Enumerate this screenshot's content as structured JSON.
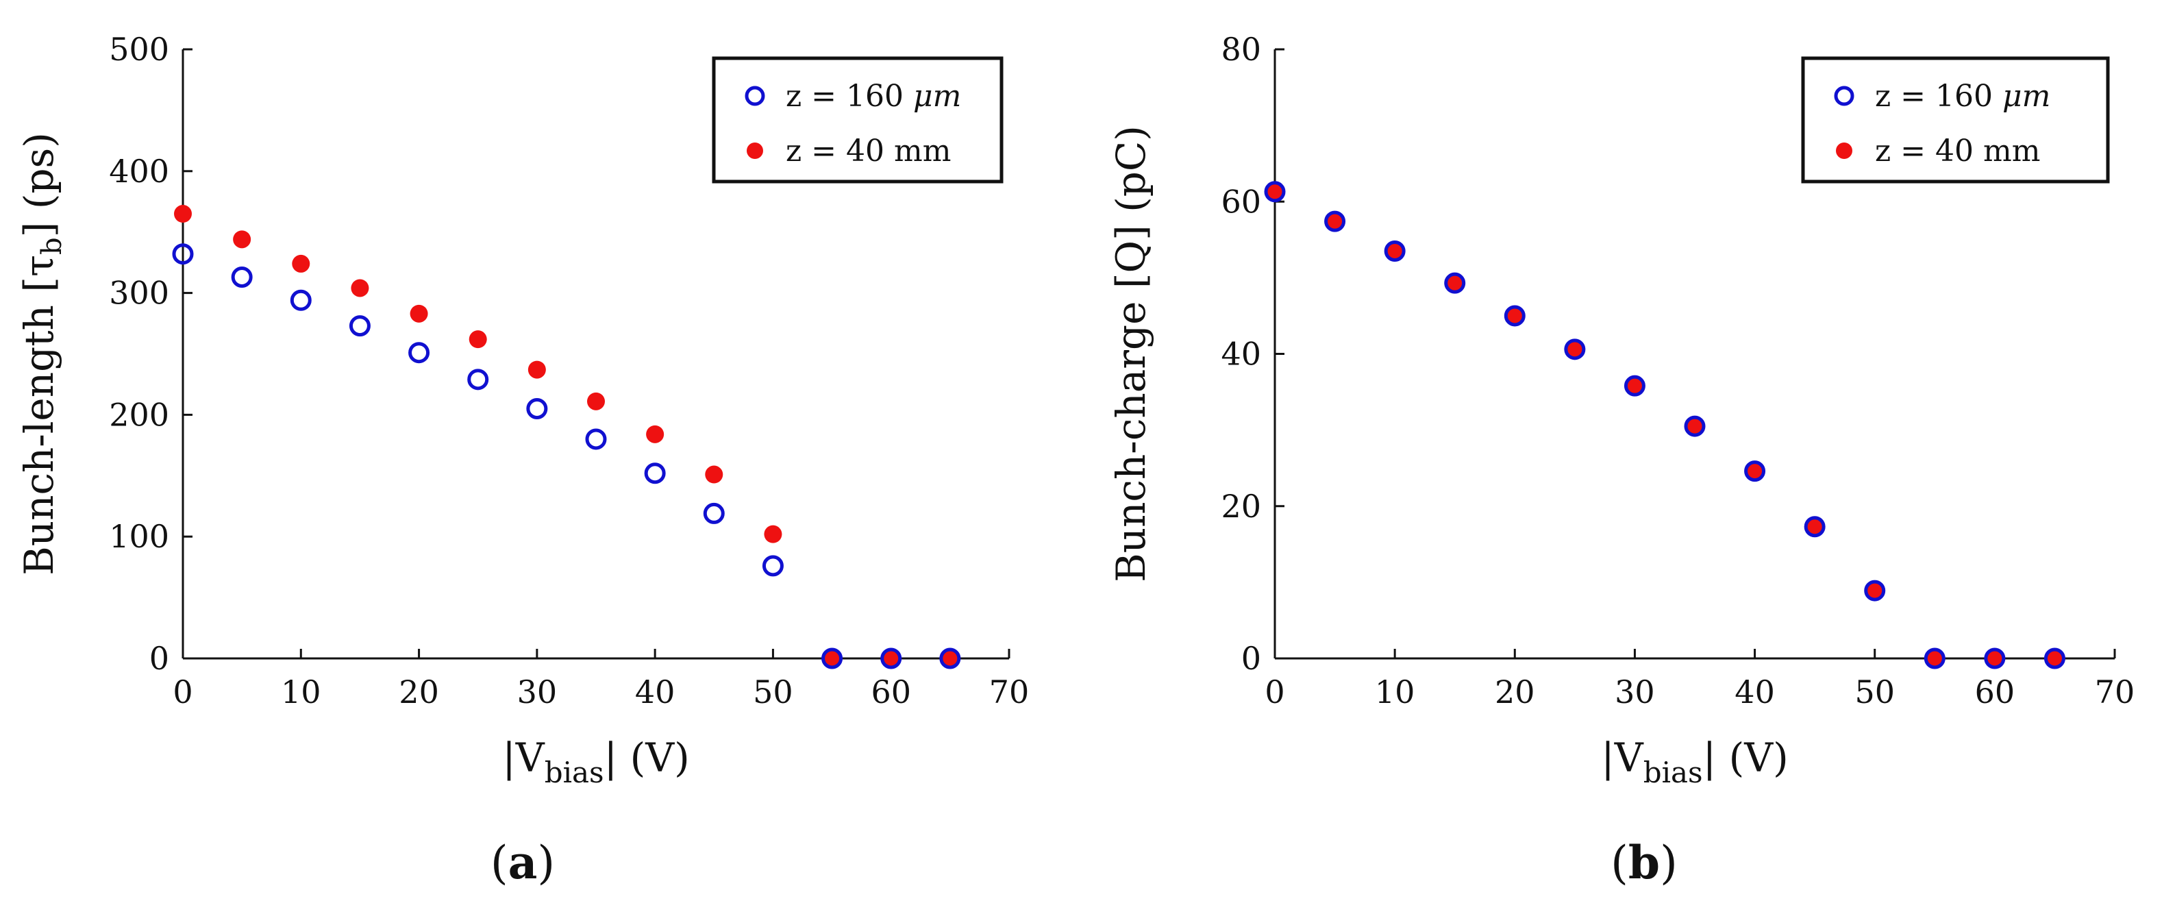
{
  "chart_data": [
    {
      "type": "scatter",
      "panel_label_open": "(",
      "panel_label": "a",
      "panel_label_close": ")",
      "ylabel": {
        "prefix": "Bunch-length [",
        "symbol": "τ",
        "subscript": "b",
        "suffix": "] (ps)"
      },
      "xlabel": {
        "prefix": "|V",
        "subscript": "bias",
        "suffix": "| (V)"
      },
      "xlim": [
        0,
        70
      ],
      "ylim": [
        0,
        500
      ],
      "xticks": [
        0,
        10,
        20,
        30,
        40,
        50,
        60,
        70
      ],
      "yticks": [
        0,
        100,
        200,
        300,
        400,
        500
      ],
      "x_tick_labels": [
        "0",
        "10",
        "20",
        "30",
        "40",
        "50",
        "60",
        "70"
      ],
      "y_tick_labels": [
        "0",
        "100",
        "200",
        "300",
        "400",
        "500"
      ],
      "legend_position": "top-right",
      "series": [
        {
          "name": "z = 160 μm",
          "label_prefix": "z = 160 ",
          "label_unit": "μm",
          "marker": "open-circle",
          "color": "#1010d0",
          "x": [
            0,
            5,
            10,
            15,
            20,
            25,
            30,
            35,
            40,
            45,
            50,
            55,
            60,
            65
          ],
          "y": [
            332,
            313,
            294,
            273,
            251,
            229,
            205,
            180,
            152,
            119,
            76,
            0,
            0,
            0
          ]
        },
        {
          "name": "z = 40 mm",
          "label_prefix": "z = 40 mm",
          "label_unit": "",
          "marker": "filled-circle",
          "color": "#ee1111",
          "x": [
            0,
            5,
            10,
            15,
            20,
            25,
            30,
            35,
            40,
            45,
            50,
            55,
            60,
            65
          ],
          "y": [
            365,
            344,
            324,
            304,
            283,
            262,
            237,
            211,
            184,
            151,
            102,
            0,
            0,
            0
          ]
        }
      ]
    },
    {
      "type": "scatter",
      "panel_label_open": "(",
      "panel_label": "b",
      "panel_label_close": ")",
      "ylabel": {
        "prefix": "Bunch-charge [Q] (pC)",
        "symbol": "",
        "subscript": "",
        "suffix": ""
      },
      "xlabel": {
        "prefix": "|V",
        "subscript": "bias",
        "suffix": "| (V)"
      },
      "xlim": [
        0,
        70
      ],
      "ylim": [
        0,
        80
      ],
      "xticks": [
        0,
        10,
        20,
        30,
        40,
        50,
        60,
        70
      ],
      "yticks": [
        0,
        20,
        40,
        60,
        80
      ],
      "x_tick_labels": [
        "0",
        "10",
        "20",
        "30",
        "40",
        "50",
        "60",
        "70"
      ],
      "y_tick_labels": [
        "0",
        "20",
        "40",
        "60",
        "80"
      ],
      "legend_position": "top-right",
      "series": [
        {
          "name": "z = 160 μm",
          "label_prefix": "z = 160 ",
          "label_unit": "μm",
          "marker": "open-circle",
          "color": "#1010d0",
          "x": [
            0,
            5,
            10,
            15,
            20,
            25,
            30,
            35,
            40,
            45,
            50,
            55,
            60,
            65
          ],
          "y": [
            61.3,
            57.4,
            53.5,
            49.3,
            45.0,
            40.6,
            35.8,
            30.5,
            24.6,
            17.3,
            8.9,
            0,
            0,
            0
          ]
        },
        {
          "name": "z = 40 mm",
          "label_prefix": "z = 40 mm",
          "label_unit": "",
          "marker": "filled-circle",
          "color": "#ee1111",
          "x": [
            0,
            5,
            10,
            15,
            20,
            25,
            30,
            35,
            40,
            45,
            50,
            55,
            60,
            65
          ],
          "y": [
            61.3,
            57.4,
            53.5,
            49.3,
            45.0,
            40.6,
            35.8,
            30.5,
            24.6,
            17.3,
            8.9,
            0,
            0,
            0
          ]
        }
      ]
    }
  ]
}
